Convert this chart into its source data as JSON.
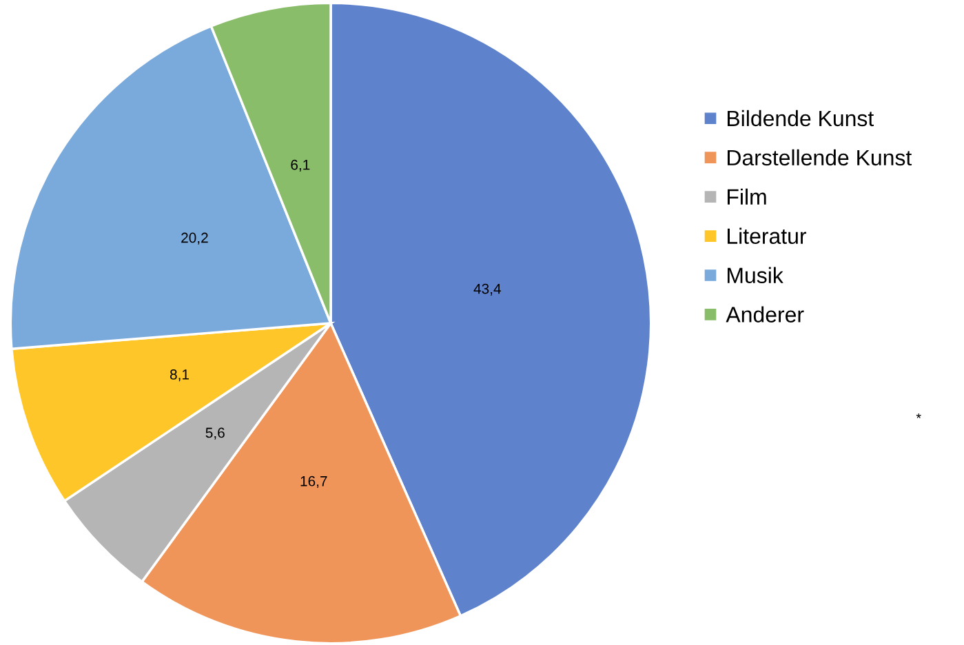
{
  "chart_data": {
    "type": "pie",
    "categories": [
      "Bildende Kunst",
      "Darstellende Kunst",
      "Film",
      "Literatur",
      "Musik",
      "Anderer"
    ],
    "values": [
      43.4,
      16.7,
      5.6,
      8.1,
      20.2,
      6.1
    ],
    "value_labels": [
      "43,4",
      "16,7",
      "5,6",
      "8,1",
      "20,2",
      "6,1"
    ],
    "colors": [
      "#5f82cc",
      "#f0955a",
      "#b5b5b5",
      "#ffc62a",
      "#7aaadb",
      "#8abd6a"
    ],
    "legend": "right",
    "annotations": [
      "*"
    ]
  }
}
